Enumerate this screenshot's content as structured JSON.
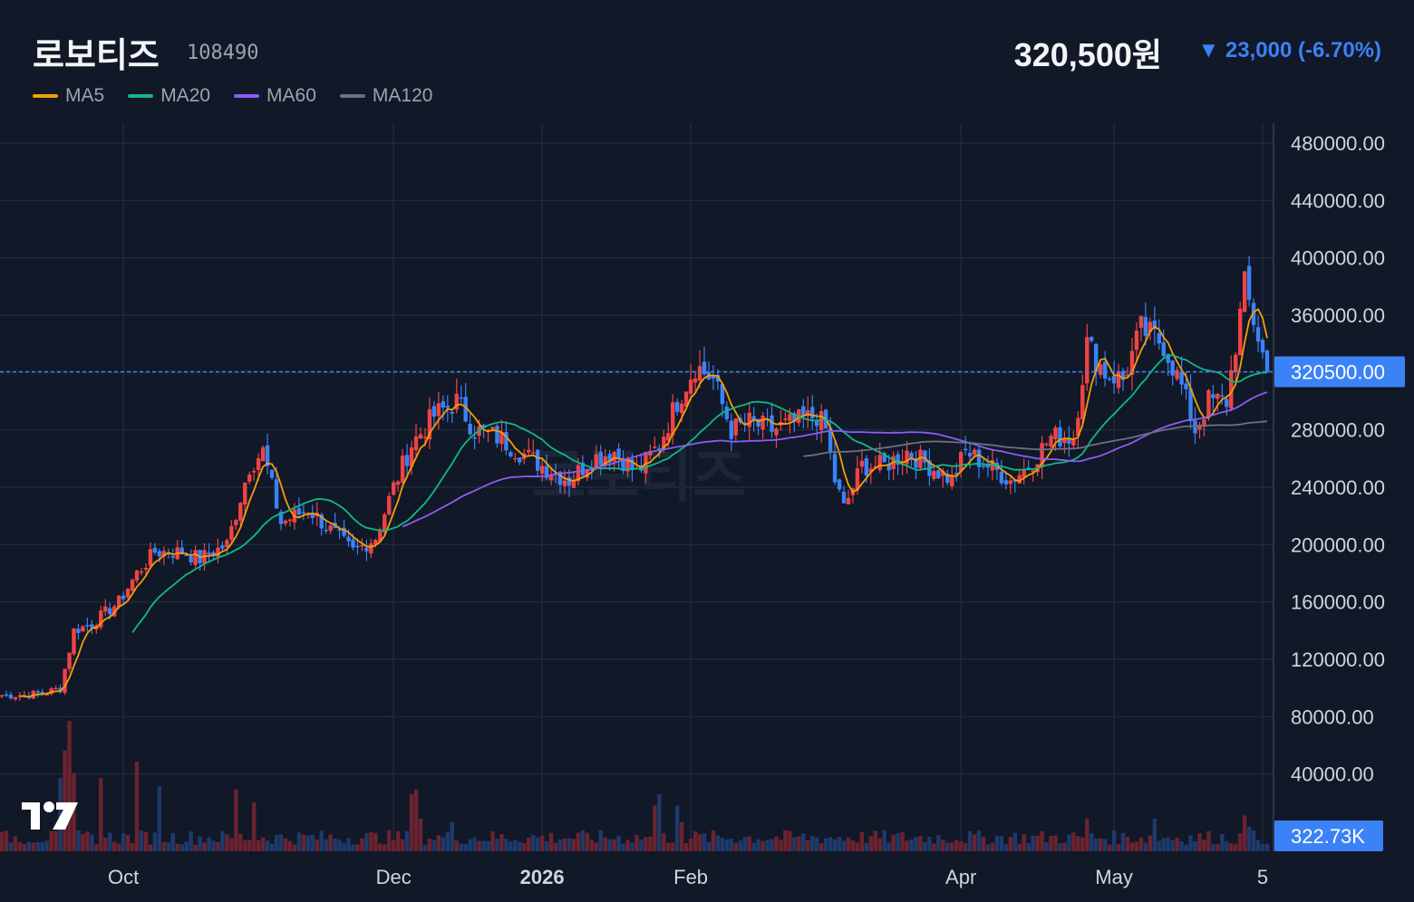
{
  "header": {
    "name": "로보티즈",
    "code": "108490",
    "price": "320,500원",
    "change_arrow": "▼",
    "change": "23,000 (-6.70%)"
  },
  "legend": [
    {
      "label": "MA5",
      "color": "#f59e0b"
    },
    {
      "label": "MA20",
      "color": "#10b981"
    },
    {
      "label": "MA60",
      "color": "#8b5cf6"
    },
    {
      "label": "MA120",
      "color": "#6b7280"
    }
  ],
  "watermark": "로보티즈",
  "colors": {
    "up": "#ef4444",
    "down": "#3b82f6",
    "grid": "#1f2a3c",
    "last": "#3b82f6"
  },
  "chart_data": {
    "type": "candlestick",
    "ylim": [
      0,
      480000
    ],
    "y_ticks": [
      "480000.00",
      "440000.00",
      "400000.00",
      "360000.00",
      "320000.00",
      "280000.00",
      "240000.00",
      "200000.00",
      "160000.00",
      "120000.00",
      "80000.00",
      "40000.00"
    ],
    "last_price_label": "320500.00",
    "last_price": 320500,
    "volume_label": "322.73K",
    "x_labels": [
      {
        "label": "Oct",
        "index": 27,
        "bold": false
      },
      {
        "label": "Dec",
        "index": 87,
        "bold": false
      },
      {
        "label": "2026",
        "index": 120,
        "bold": true
      },
      {
        "label": "Feb",
        "index": 153,
        "bold": false
      },
      {
        "label": "Apr",
        "index": 213,
        "bold": false
      },
      {
        "label": "May",
        "index": 247,
        "bold": false
      },
      {
        "label": "5",
        "index": 280,
        "bold": false
      }
    ],
    "anchors": [
      [
        0,
        95000
      ],
      [
        5,
        95000
      ],
      [
        10,
        97000
      ],
      [
        13,
        100000
      ],
      [
        16,
        140000
      ],
      [
        20,
        145000
      ],
      [
        26,
        160000
      ],
      [
        30,
        180000
      ],
      [
        34,
        195000
      ],
      [
        40,
        195000
      ],
      [
        44,
        190000
      ],
      [
        50,
        200000
      ],
      [
        55,
        255000
      ],
      [
        58,
        265000
      ],
      [
        62,
        215000
      ],
      [
        68,
        225000
      ],
      [
        73,
        210000
      ],
      [
        78,
        195000
      ],
      [
        83,
        205000
      ],
      [
        87,
        240000
      ],
      [
        91,
        270000
      ],
      [
        96,
        290000
      ],
      [
        101,
        300000
      ],
      [
        105,
        280000
      ],
      [
        110,
        275000
      ],
      [
        115,
        265000
      ],
      [
        120,
        255000
      ],
      [
        126,
        245000
      ],
      [
        131,
        260000
      ],
      [
        136,
        265000
      ],
      [
        141,
        250000
      ],
      [
        146,
        270000
      ],
      [
        150,
        300000
      ],
      [
        154,
        325000
      ],
      [
        158,
        315000
      ],
      [
        162,
        280000
      ],
      [
        166,
        285000
      ],
      [
        171,
        280000
      ],
      [
        176,
        285000
      ],
      [
        181,
        290000
      ],
      [
        183,
        280000
      ],
      [
        185,
        245000
      ],
      [
        187,
        225000
      ],
      [
        191,
        255000
      ],
      [
        196,
        255000
      ],
      [
        201,
        265000
      ],
      [
        206,
        255000
      ],
      [
        211,
        245000
      ],
      [
        214,
        265000
      ],
      [
        219,
        255000
      ],
      [
        224,
        245000
      ],
      [
        228,
        255000
      ],
      [
        233,
        275000
      ],
      [
        238,
        275000
      ],
      [
        241,
        340000
      ],
      [
        245,
        320000
      ],
      [
        249,
        315000
      ],
      [
        253,
        350000
      ],
      [
        258,
        340000
      ],
      [
        262,
        310000
      ],
      [
        265,
        280000
      ],
      [
        268,
        300000
      ],
      [
        272,
        300000
      ],
      [
        276,
        380000
      ],
      [
        279,
        345000
      ],
      [
        281,
        320500
      ]
    ],
    "volume_spikes": [
      [
        13,
        45000
      ],
      [
        14,
        62000
      ],
      [
        15,
        80000
      ],
      [
        16,
        48000
      ],
      [
        22,
        45000
      ],
      [
        30,
        55000
      ],
      [
        35,
        40000
      ],
      [
        52,
        38000
      ],
      [
        56,
        30000
      ],
      [
        91,
        35000
      ],
      [
        92,
        38000
      ],
      [
        93,
        20000
      ],
      [
        100,
        18000
      ],
      [
        145,
        28000
      ],
      [
        146,
        35000
      ],
      [
        150,
        28000
      ],
      [
        151,
        18000
      ],
      [
        241,
        20000
      ],
      [
        256,
        20000
      ],
      [
        276,
        22000
      ],
      [
        277,
        15000
      ]
    ]
  }
}
